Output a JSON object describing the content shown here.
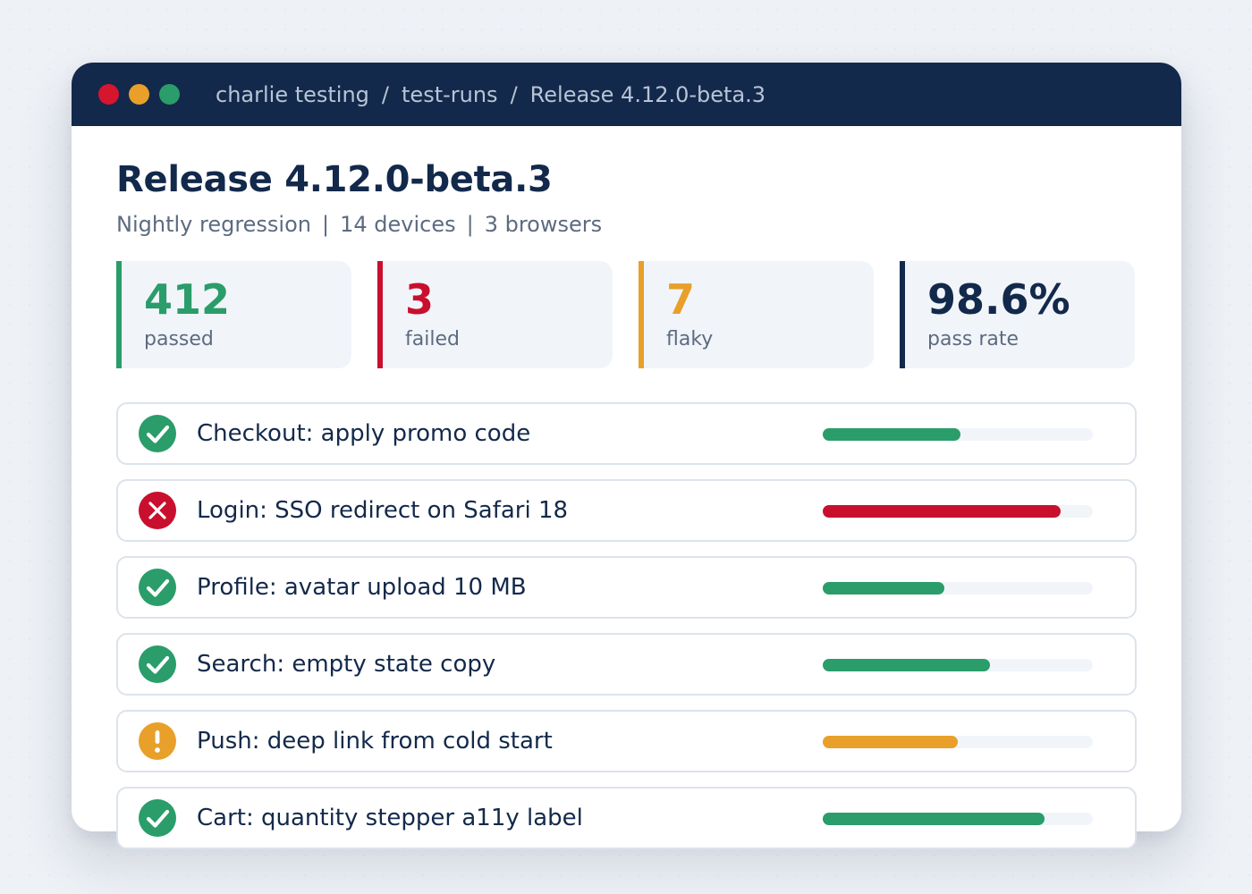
{
  "window": {
    "traffic_lights": [
      "#d6152f",
      "#e8a02a",
      "#2a9d6a"
    ],
    "breadcrumb": [
      "charlie testing",
      "test-runs",
      "Release 4.12.0-beta.3"
    ],
    "breadcrumb_separator": "/"
  },
  "header": {
    "title": "Release 4.12.0-beta.3",
    "subtitle": [
      "Nightly regression",
      "14 devices",
      "3 browsers"
    ],
    "subtitle_separator": "|"
  },
  "stats": [
    {
      "value": "412",
      "label": "passed",
      "color": "#2a9d6a"
    },
    {
      "value": "3",
      "label": "failed",
      "color": "#c8102e"
    },
    {
      "value": "7",
      "label": "flaky",
      "color": "#e8a02a"
    },
    {
      "value": "98.6%",
      "label": "pass rate",
      "color": "#13294b"
    }
  ],
  "tests": [
    {
      "name": "Checkout: apply promo code",
      "status": "passed",
      "icon": "check-circle-icon",
      "bar": 0.51,
      "color": "#2a9d6a"
    },
    {
      "name": "Login: SSO redirect on Safari 18",
      "status": "failed",
      "icon": "x-circle-icon",
      "bar": 0.88,
      "color": "#c8102e"
    },
    {
      "name": "Profile: avatar upload 10 MB",
      "status": "passed",
      "icon": "check-circle-icon",
      "bar": 0.45,
      "color": "#2a9d6a"
    },
    {
      "name": "Search: empty state copy",
      "status": "passed",
      "icon": "check-circle-icon",
      "bar": 0.62,
      "color": "#2a9d6a"
    },
    {
      "name": "Push: deep link from cold start",
      "status": "flaky",
      "icon": "exclamation-circle-icon",
      "bar": 0.5,
      "color": "#e8a02a"
    },
    {
      "name": "Cart: quantity stepper a11y label",
      "status": "passed",
      "icon": "check-circle-icon",
      "bar": 0.82,
      "color": "#2a9d6a"
    }
  ]
}
